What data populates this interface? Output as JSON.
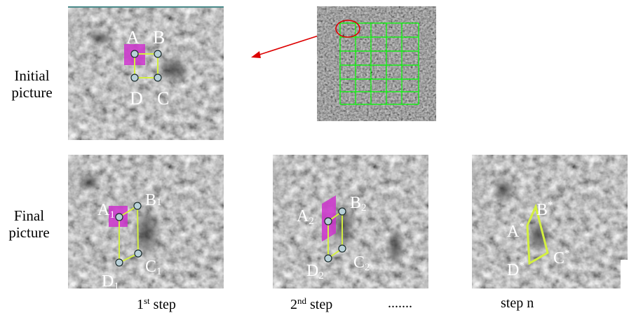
{
  "row_labels": {
    "initial_line1": "Initial",
    "initial_line2": "picture",
    "final_line1": "Final",
    "final_line2": "picture"
  },
  "initial_points": {
    "a": "A",
    "b": "B",
    "c": "C",
    "d": "D"
  },
  "step1_points": {
    "a": "A",
    "a_sub": "1",
    "b": "B",
    "b_sub": "1",
    "c": "C",
    "c_sub": "1",
    "d": "D",
    "d_sub": "1"
  },
  "step2_points": {
    "a": "A",
    "a_sub": "2",
    "b": "B",
    "b_sub": "2",
    "c": "C",
    "c_sub": "2",
    "d": "D",
    "d_sub": "2"
  },
  "stepn_points": {
    "a": "A",
    "b": "B",
    "c": "C",
    "d": "D",
    "mark": "*"
  },
  "captions": {
    "step1_num": "1",
    "step1_sup": "st",
    "step1_word": " step",
    "step2_num": "2",
    "step2_sup": "nd",
    "step2_word": " step",
    "ellipsis": ".......",
    "stepn": "step n"
  },
  "colors": {
    "grid": "#00ff00",
    "polygon": "#d4f040",
    "highlight": "#cc33cc",
    "arrow": "#dd0000",
    "node_fill": "#b8d0d8"
  }
}
